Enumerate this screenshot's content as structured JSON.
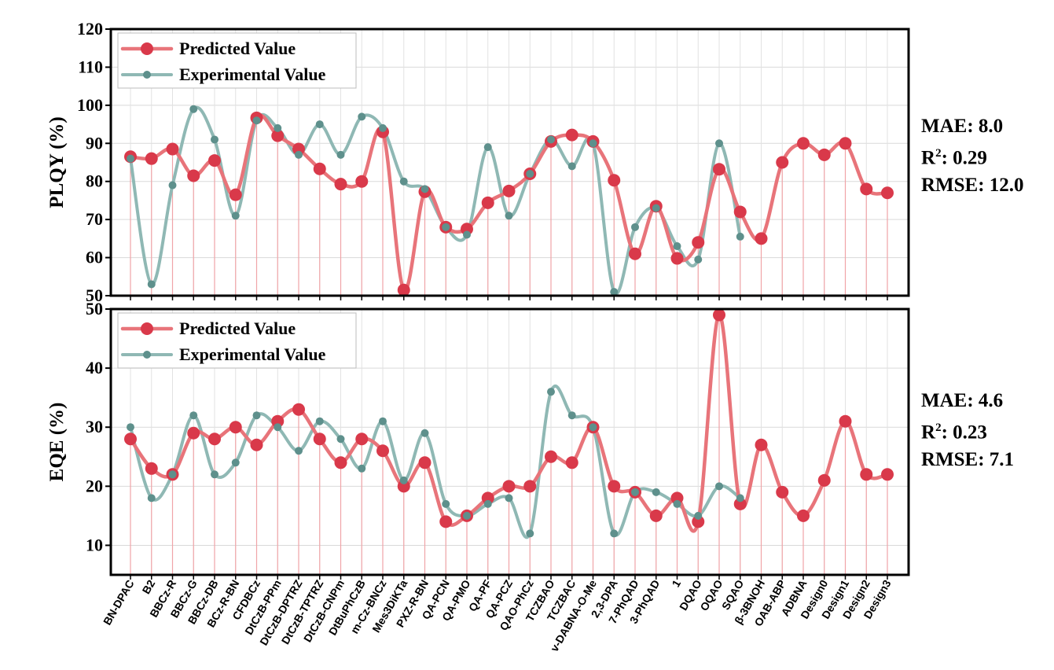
{
  "chart_data": [
    {
      "type": "line",
      "ylabel": "PLQY (%)",
      "ylim": [
        50,
        120
      ],
      "yticks": [
        50,
        60,
        70,
        80,
        90,
        100,
        110,
        120
      ],
      "grid": true,
      "legend_position": "top-left",
      "categories": [
        "BN-DPAC",
        "B2",
        "BBCz-R",
        "BBCz-G",
        "BBCz-DB",
        "BCz-R-BN",
        "CFDBCz",
        "DtCzB-PPm",
        "DtCzB-DPTRZ",
        "DtCzB-TPTRZ",
        "DtCzB-CNPm",
        "DtBuPhCzB",
        "m-Cz-BNCz",
        "Mes3DiKTa",
        "PXZ-R-BN",
        "QA-PCN",
        "QA-PMO",
        "QA-PF",
        "QA-PCZ",
        "QAO-PhCz",
        "TCZBAO",
        "TCZBAC",
        "v-DABNA-O-Me",
        "2,3-DPA",
        "7-PhQAD",
        "3-PhQAD",
        "1",
        "DQAO",
        "OQAO",
        "SQAO",
        "β-3BNOH",
        "OAB-ABP",
        "ADBNA",
        "Design0",
        "Design1",
        "Design2",
        "Design3"
      ],
      "series": [
        {
          "name": "Predicted Value",
          "color": "#e8747a",
          "marker_color": "#d9394a",
          "values": [
            86.5,
            86,
            88.5,
            81.5,
            85.5,
            76.5,
            96.7,
            92,
            88.5,
            83.3,
            79.3,
            80,
            93,
            51.5,
            77.3,
            68,
            67.5,
            74.4,
            77.5,
            82,
            90.5,
            92.2,
            90.5,
            80.3,
            61,
            73.5,
            59.8,
            64,
            83.2,
            72,
            65,
            85,
            90,
            87,
            90,
            78,
            77
          ]
        },
        {
          "name": "Experimental Value",
          "color": "#8fb8b4",
          "marker_color": "#5e908c",
          "values": [
            86,
            53,
            79,
            99,
            91,
            71,
            96,
            94,
            87,
            95,
            87,
            97,
            94,
            80,
            78,
            68,
            66,
            89,
            71,
            82,
            91,
            84,
            90,
            51,
            68,
            73,
            63,
            59.5,
            90,
            65.5,
            null,
            null,
            null,
            null,
            null,
            null,
            null
          ]
        }
      ],
      "metrics": {
        "mae": "MAE: 8.0",
        "r2_prefix": "R",
        "r2_sup": "2",
        "r2_rest": ": 0.29",
        "rmse": "RMSE: 12.0"
      }
    },
    {
      "type": "line",
      "ylabel": "EQE (%)",
      "ylim": [
        5,
        50
      ],
      "yticks": [
        10,
        20,
        30,
        40,
        50
      ],
      "grid": true,
      "legend_position": "top-left",
      "series": [
        {
          "name": "Predicted Value",
          "color": "#e8747a",
          "marker_color": "#d9394a",
          "values": [
            28,
            23,
            22,
            29,
            28,
            30,
            27,
            31,
            33,
            28,
            24,
            28,
            26,
            20,
            24,
            14,
            15,
            18,
            20,
            20,
            25,
            24,
            30,
            20,
            19,
            15,
            18,
            14,
            49,
            17,
            27,
            19,
            15,
            21,
            31,
            22,
            22
          ]
        },
        {
          "name": "Experimental Value",
          "color": "#8fb8b4",
          "marker_color": "#5e908c",
          "values": [
            30,
            18,
            22,
            32,
            22,
            24,
            32,
            30,
            26,
            31,
            28,
            23,
            31,
            21,
            29,
            17,
            15,
            17,
            18,
            12,
            36,
            32,
            30,
            12,
            19,
            19,
            17,
            15,
            20,
            18,
            null,
            null,
            null,
            null,
            null,
            null,
            null
          ]
        }
      ],
      "metrics": {
        "mae": "MAE: 4.6",
        "r2_prefix": "R",
        "r2_sup": "2",
        "r2_rest": ": 0.23",
        "rmse": "RMSE: 7.1"
      }
    }
  ]
}
